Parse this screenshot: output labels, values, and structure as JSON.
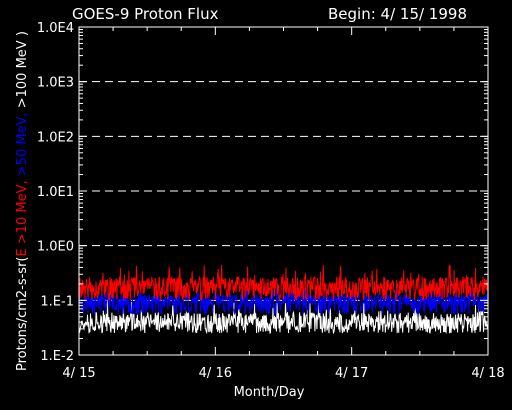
{
  "chart_data": {
    "type": "line",
    "title": "GOES-9 Proton Flux",
    "begin_label": "Begin: 4/ 15/ 1998",
    "xlabel": "Month/Day",
    "ylabel": {
      "prefix": "Protons/cm2-s-sr(",
      "part_red": "E >10 MeV,",
      "part_blue": " >50 MeV,",
      "part_white": " >100 MeV )"
    },
    "y_scale": "log",
    "ylim": [
      0.01,
      10000
    ],
    "y_ticks": [
      {
        "value": 10000,
        "label": "1.0E4"
      },
      {
        "value": 1000,
        "label": "1.0E3"
      },
      {
        "value": 100,
        "label": "1.0E2"
      },
      {
        "value": 10,
        "label": "1.0E1"
      },
      {
        "value": 1,
        "label": "1.0E0"
      },
      {
        "value": 0.1,
        "label": "1.E-1"
      },
      {
        "value": 0.01,
        "label": "1.E-2"
      }
    ],
    "x_ticks": [
      "4/ 15",
      "4/ 16",
      "4/ 17",
      "4/ 18"
    ],
    "xlim_days": [
      0,
      3
    ],
    "grid": "dashed horizontal at each decade",
    "series": [
      {
        "color": "#ff0000",
        "low": 0.1,
        "typical": 0.18,
        "high": 0.45,
        "seed": 11
      },
      {
        "color": "#0000ff",
        "low": 0.055,
        "typical": 0.1,
        "high": 0.18,
        "seed": 23
      },
      {
        "color": "#ffffff",
        "low": 0.025,
        "typical": 0.04,
        "high": 0.1,
        "seed": 37
      }
    ],
    "background_color": "#000000",
    "axis_color": "#ffffff"
  }
}
